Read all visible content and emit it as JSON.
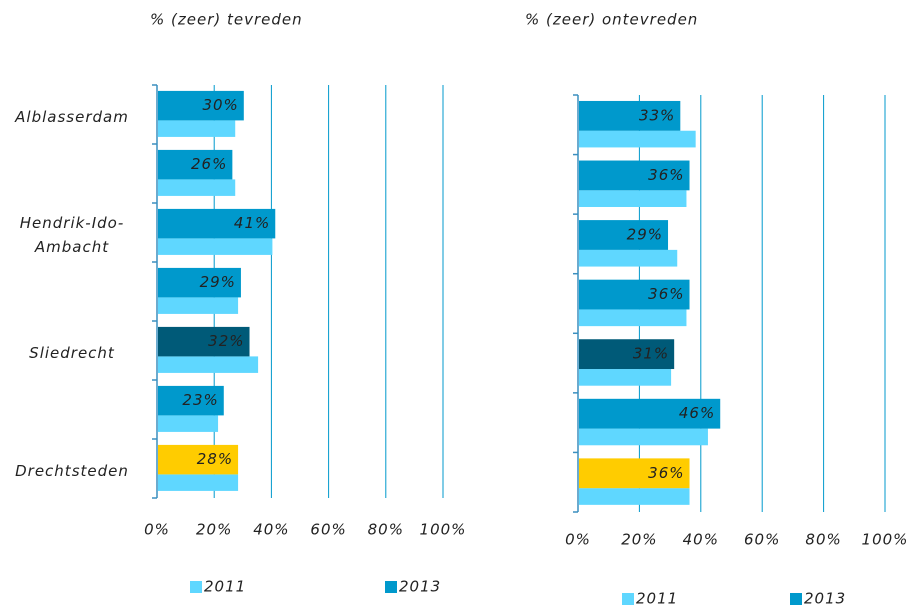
{
  "chart_data": [
    {
      "type": "bar",
      "orientation": "horizontal",
      "title": "% (zeer) tevreden",
      "categories": [
        "Alblasserdam",
        null,
        "Hendrik-Ido-Ambacht",
        null,
        "Sliedrecht",
        null,
        "Drechtsteden"
      ],
      "series": [
        {
          "name": "2011",
          "color": "#5fd7ff",
          "values": [
            27,
            27,
            40,
            28,
            35,
            21,
            28
          ]
        },
        {
          "name": "2013",
          "color": "#0099cc",
          "colors": [
            "#0099cc",
            "#0099cc",
            "#0099cc",
            "#0099cc",
            "#005a78",
            "#0099cc",
            "#ffcc00"
          ],
          "values": [
            30,
            26,
            41,
            29,
            32,
            23,
            28
          ],
          "value_labels": [
            "30%",
            "26%",
            "41%",
            "29%",
            "32%",
            "23%",
            "28%"
          ]
        }
      ],
      "xlim": [
        0,
        100
      ],
      "xticks": [
        {
          "value": 0,
          "label": "0%"
        },
        {
          "value": 20,
          "label": "20%"
        },
        {
          "value": 40,
          "label": "40%"
        },
        {
          "value": 60,
          "label": "60%"
        },
        {
          "value": 80,
          "label": "80%"
        },
        {
          "value": 100,
          "label": "100%"
        }
      ],
      "grid": true
    },
    {
      "type": "bar",
      "orientation": "horizontal",
      "title": "% (zeer) ontevreden",
      "categories": [
        null,
        null,
        null,
        null,
        null,
        null,
        null
      ],
      "series": [
        {
          "name": "2011",
          "color": "#5fd7ff",
          "values": [
            38,
            35,
            32,
            35,
            30,
            42,
            36
          ]
        },
        {
          "name": "2013",
          "color": "#0099cc",
          "colors": [
            "#0099cc",
            "#0099cc",
            "#0099cc",
            "#0099cc",
            "#005a78",
            "#0099cc",
            "#ffcc00"
          ],
          "values": [
            33,
            36,
            29,
            36,
            31,
            46,
            36
          ],
          "value_labels": [
            "33%",
            "36%",
            "29%",
            "36%",
            "31%",
            "46%",
            "36%"
          ]
        }
      ],
      "xlim": [
        0,
        100
      ],
      "xticks": [
        {
          "value": 0,
          "label": "0%"
        },
        {
          "value": 20,
          "label": "20%"
        },
        {
          "value": 40,
          "label": "40%"
        },
        {
          "value": 60,
          "label": "60%"
        },
        {
          "value": 80,
          "label": "80%"
        },
        {
          "value": 100,
          "label": "100%"
        }
      ],
      "grid": true
    }
  ]
}
